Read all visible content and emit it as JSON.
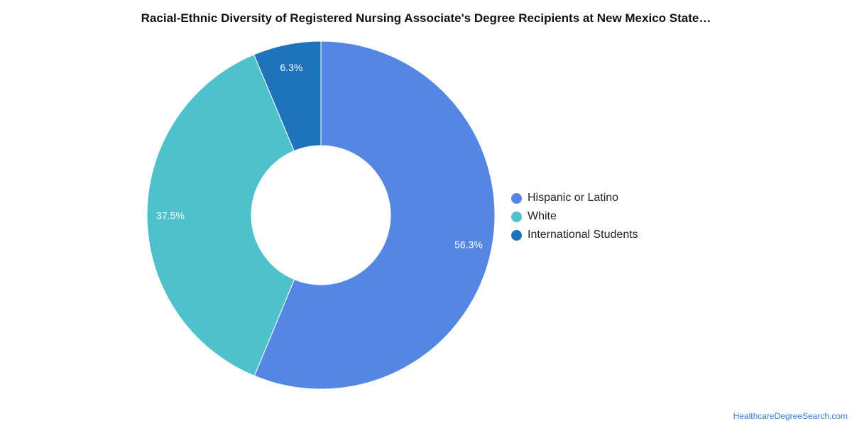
{
  "chart_data": {
    "type": "pie",
    "donut": true,
    "title": "Racial-Ethnic Diversity of Registered Nursing Associate's Degree Recipients at New Mexico State…",
    "slices": [
      {
        "label": "Hispanic or Latino",
        "value": 56.3,
        "value_label": "56.3%",
        "color": "#5486e3"
      },
      {
        "label": "White",
        "value": 37.5,
        "value_label": "37.5%",
        "color": "#4fc1cd"
      },
      {
        "label": "International Students",
        "value": 6.3,
        "value_label": "6.3%",
        "color": "#1f73bd"
      }
    ],
    "legend_position": "right"
  },
  "source": "HealthcareDegreeSearch.com"
}
